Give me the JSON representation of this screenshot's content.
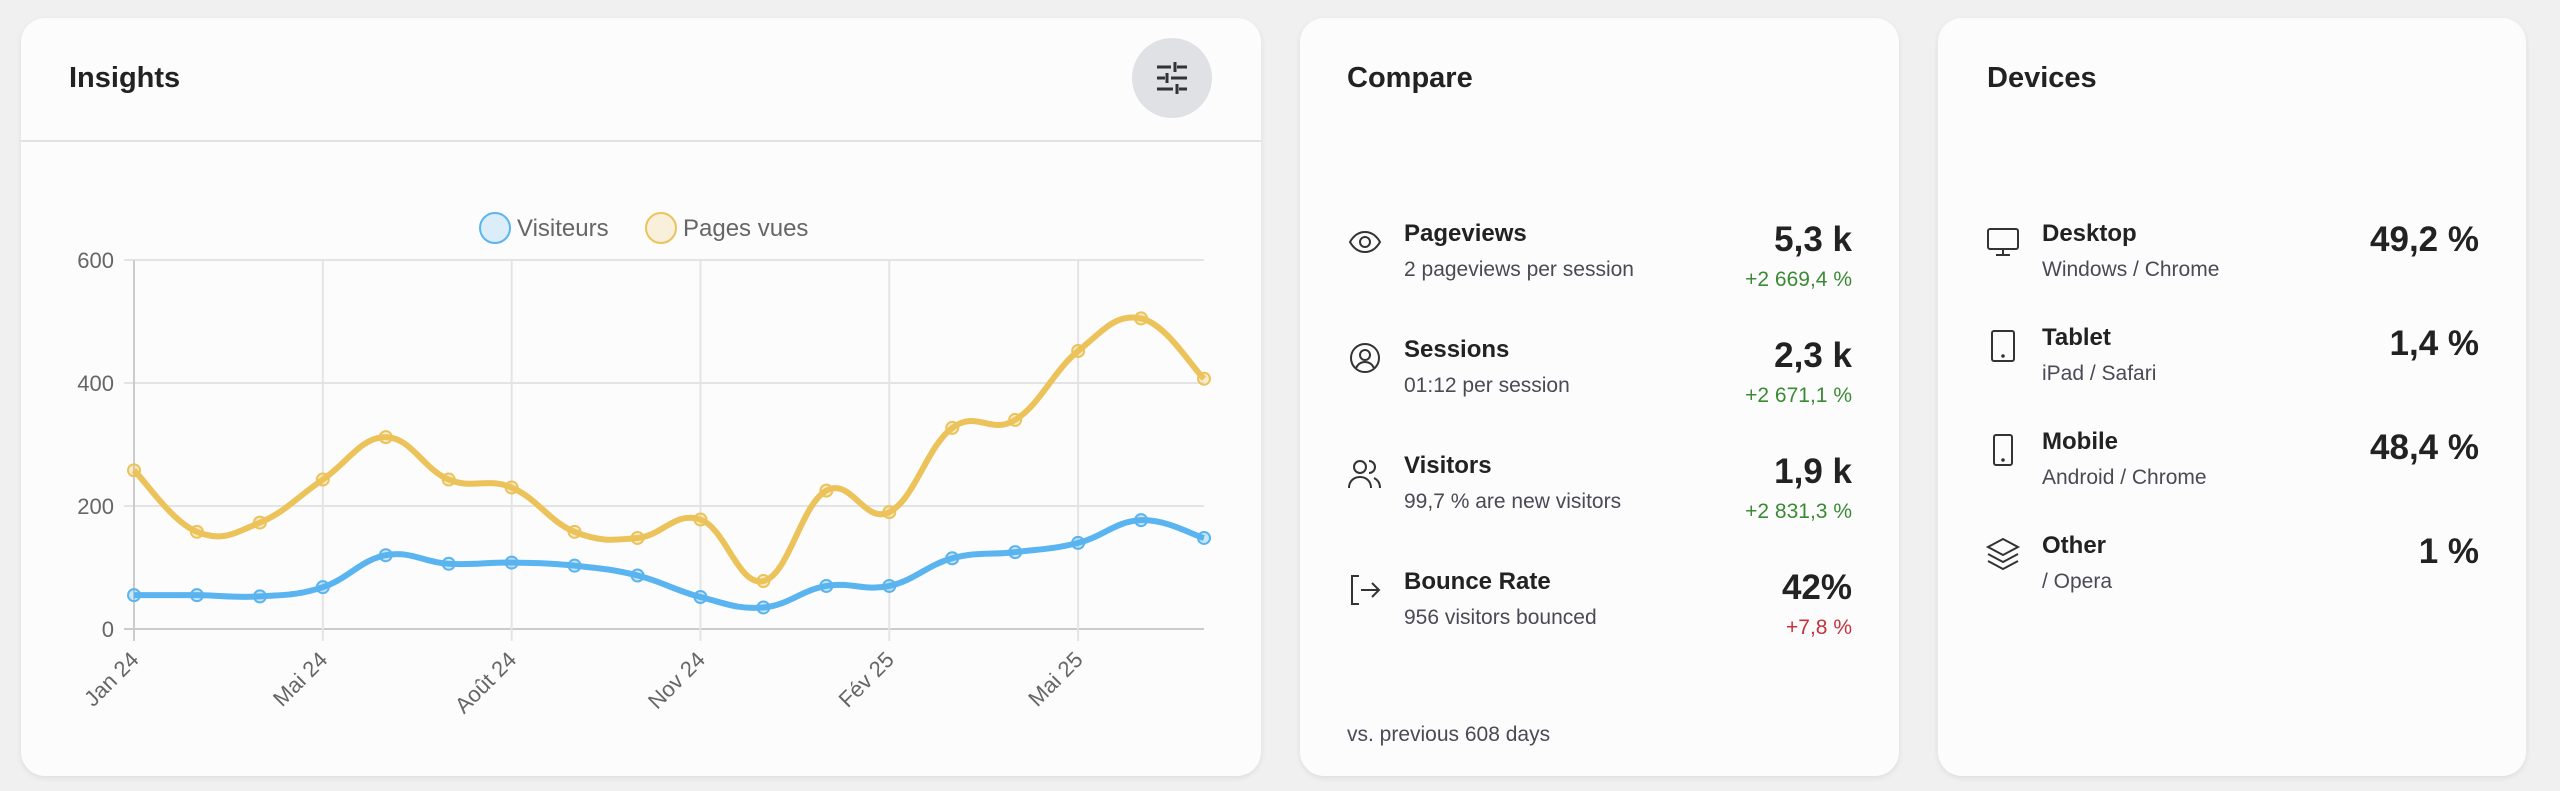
{
  "insights": {
    "title": "Insights",
    "filter_icon": "sliders-icon"
  },
  "chart_data": {
    "type": "line",
    "legend": [
      "Visiteurs",
      "Pages vues"
    ],
    "legend_position": "top-center",
    "x_tick_labels": [
      "Jan 24",
      "Mai 24",
      "Août 24",
      "Nov 24",
      "Fév 25",
      "Mai 25"
    ],
    "x_tick_indices": [
      0,
      3,
      6,
      9,
      12,
      15
    ],
    "y_ticks": [
      "0",
      "200",
      "400",
      "600"
    ],
    "ylim": [
      0,
      600
    ],
    "grid": true,
    "series": [
      {
        "name": "Visiteurs",
        "color": "#5ab4ef",
        "values": [
          55,
          55,
          53,
          68,
          120,
          106,
          108,
          103,
          87,
          52,
          35,
          70,
          70,
          115,
          125,
          140,
          177,
          148
        ]
      },
      {
        "name": "Pages vues",
        "color": "#ebc35a",
        "values": [
          258,
          158,
          173,
          243,
          312,
          243,
          230,
          158,
          148,
          178,
          78,
          225,
          190,
          327,
          340,
          452,
          505,
          407
        ]
      }
    ]
  },
  "compare": {
    "title": "Compare",
    "rows": [
      {
        "icon": "eye-icon",
        "title": "Pageviews",
        "subtitle": "2 pageviews per session",
        "value": "5,3 k",
        "delta": "+2 669,4 %",
        "delta_color": "#3b8a36"
      },
      {
        "icon": "user-circle-icon",
        "title": "Sessions",
        "subtitle": "01:12 per session",
        "value": "2,3 k",
        "delta": "+2 671,1 %",
        "delta_color": "#3b8a36"
      },
      {
        "icon": "users-icon",
        "title": "Visitors",
        "subtitle": "99,7 % are new visitors",
        "value": "1,9 k",
        "delta": "+2 831,3 %",
        "delta_color": "#3b8a36"
      },
      {
        "icon": "exit-icon",
        "title": "Bounce Rate",
        "subtitle": "956 visitors bounced",
        "value": "42%",
        "delta": "+7,8 %",
        "delta_color": "#c4323b"
      }
    ],
    "footer": "vs. previous 608 days"
  },
  "devices": {
    "title": "Devices",
    "rows": [
      {
        "icon": "desktop-icon",
        "title": "Desktop",
        "subtitle": "Windows / Chrome",
        "value": "49,2 %"
      },
      {
        "icon": "tablet-icon",
        "title": "Tablet",
        "subtitle": "iPad / Safari",
        "value": "1,4 %"
      },
      {
        "icon": "mobile-icon",
        "title": "Mobile",
        "subtitle": "Android / Chrome",
        "value": "48,4 %"
      },
      {
        "icon": "layers-icon",
        "title": "Other",
        "subtitle": "/ Opera",
        "value": "1 %"
      }
    ]
  }
}
